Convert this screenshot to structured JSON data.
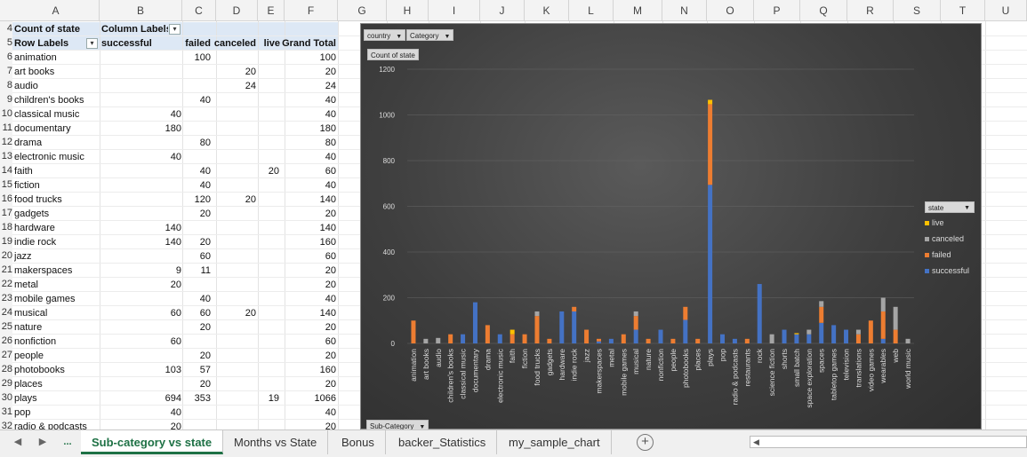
{
  "columns": [
    "A",
    "B",
    "C",
    "D",
    "E",
    "F",
    "G",
    "H",
    "I",
    "J",
    "K",
    "L",
    "M",
    "N",
    "O",
    "P",
    "Q",
    "R",
    "S",
    "T",
    "U"
  ],
  "pivot": {
    "values_label": "Count of state",
    "column_labels": "Column Labels",
    "row_labels": "Row Labels",
    "col_headers": [
      "successful",
      "failed",
      "canceled",
      "live",
      "Grand Total"
    ],
    "first_row_number": 4,
    "rows": [
      {
        "label": "animation",
        "successful": "",
        "failed": "100",
        "canceled": "",
        "live": "",
        "total": "100"
      },
      {
        "label": "art books",
        "successful": "",
        "failed": "",
        "canceled": "20",
        "live": "",
        "total": "20"
      },
      {
        "label": "audio",
        "successful": "",
        "failed": "",
        "canceled": "24",
        "live": "",
        "total": "24"
      },
      {
        "label": "children's books",
        "successful": "",
        "failed": "40",
        "canceled": "",
        "live": "",
        "total": "40"
      },
      {
        "label": "classical music",
        "successful": "40",
        "failed": "",
        "canceled": "",
        "live": "",
        "total": "40"
      },
      {
        "label": "documentary",
        "successful": "180",
        "failed": "",
        "canceled": "",
        "live": "",
        "total": "180"
      },
      {
        "label": "drama",
        "successful": "",
        "failed": "80",
        "canceled": "",
        "live": "",
        "total": "80"
      },
      {
        "label": "electronic music",
        "successful": "40",
        "failed": "",
        "canceled": "",
        "live": "",
        "total": "40"
      },
      {
        "label": "faith",
        "successful": "",
        "failed": "40",
        "canceled": "",
        "live": "20",
        "total": "60"
      },
      {
        "label": "fiction",
        "successful": "",
        "failed": "40",
        "canceled": "",
        "live": "",
        "total": "40"
      },
      {
        "label": "food trucks",
        "successful": "",
        "failed": "120",
        "canceled": "20",
        "live": "",
        "total": "140"
      },
      {
        "label": "gadgets",
        "successful": "",
        "failed": "20",
        "canceled": "",
        "live": "",
        "total": "20"
      },
      {
        "label": "hardware",
        "successful": "140",
        "failed": "",
        "canceled": "",
        "live": "",
        "total": "140"
      },
      {
        "label": "indie rock",
        "successful": "140",
        "failed": "20",
        "canceled": "",
        "live": "",
        "total": "160"
      },
      {
        "label": "jazz",
        "successful": "",
        "failed": "60",
        "canceled": "",
        "live": "",
        "total": "60"
      },
      {
        "label": "makerspaces",
        "successful": "9",
        "failed": "11",
        "canceled": "",
        "live": "",
        "total": "20"
      },
      {
        "label": "metal",
        "successful": "20",
        "failed": "",
        "canceled": "",
        "live": "",
        "total": "20"
      },
      {
        "label": "mobile games",
        "successful": "",
        "failed": "40",
        "canceled": "",
        "live": "",
        "total": "40"
      },
      {
        "label": "musical",
        "successful": "60",
        "failed": "60",
        "canceled": "20",
        "live": "",
        "total": "140"
      },
      {
        "label": "nature",
        "successful": "",
        "failed": "20",
        "canceled": "",
        "live": "",
        "total": "20"
      },
      {
        "label": "nonfiction",
        "successful": "60",
        "failed": "",
        "canceled": "",
        "live": "",
        "total": "60"
      },
      {
        "label": "people",
        "successful": "",
        "failed": "20",
        "canceled": "",
        "live": "",
        "total": "20"
      },
      {
        "label": "photobooks",
        "successful": "103",
        "failed": "57",
        "canceled": "",
        "live": "",
        "total": "160"
      },
      {
        "label": "places",
        "successful": "",
        "failed": "20",
        "canceled": "",
        "live": "",
        "total": "20"
      },
      {
        "label": "plays",
        "successful": "694",
        "failed": "353",
        "canceled": "",
        "live": "19",
        "total": "1066"
      },
      {
        "label": "pop",
        "successful": "40",
        "failed": "",
        "canceled": "",
        "live": "",
        "total": "40"
      },
      {
        "label": "radio & podcasts",
        "successful": "20",
        "failed": "",
        "canceled": "",
        "live": "",
        "total": "20"
      }
    ]
  },
  "chart": {
    "filter_country": "country",
    "filter_category": "Category",
    "value_button": "Count of state",
    "axis_button": "Sub-Category",
    "legend_title": "state",
    "colors": {
      "successful": "#4472c4",
      "failed": "#ed7d31",
      "canceled": "#a5a5a5",
      "live": "#ffc000"
    }
  },
  "chart_data": {
    "type": "bar",
    "stacked": true,
    "ylim": [
      0,
      1200
    ],
    "yticks": [
      "0",
      "200",
      "400",
      "600",
      "800",
      "1000",
      "1200"
    ],
    "categories": [
      "animation",
      "art books",
      "audio",
      "children's books",
      "classical music",
      "documentary",
      "drama",
      "electronic music",
      "faith",
      "fiction",
      "food trucks",
      "gadgets",
      "hardware",
      "indie rock",
      "jazz",
      "makerspaces",
      "metal",
      "mobile games",
      "musical",
      "nature",
      "nonfiction",
      "people",
      "photobooks",
      "places",
      "plays",
      "pop",
      "radio & podcasts",
      "restaurants",
      "rock",
      "science fiction",
      "shorts",
      "small batch",
      "space exploration",
      "spaces",
      "tabletop games",
      "television",
      "translations",
      "video games",
      "wearables",
      "web",
      "world music"
    ],
    "series": [
      {
        "name": "successful",
        "values": [
          0,
          0,
          0,
          0,
          40,
          180,
          0,
          40,
          0,
          0,
          0,
          0,
          140,
          140,
          0,
          9,
          20,
          0,
          60,
          0,
          60,
          0,
          103,
          0,
          694,
          40,
          20,
          0,
          260,
          0,
          60,
          40,
          40,
          90,
          80,
          60,
          0,
          0,
          20,
          0,
          0
        ]
      },
      {
        "name": "failed",
        "values": [
          100,
          0,
          0,
          40,
          0,
          0,
          80,
          0,
          40,
          40,
          120,
          20,
          0,
          20,
          60,
          11,
          0,
          40,
          60,
          20,
          0,
          20,
          57,
          20,
          353,
          0,
          0,
          20,
          0,
          0,
          0,
          0,
          0,
          70,
          0,
          0,
          40,
          100,
          120,
          60,
          0
        ]
      },
      {
        "name": "canceled",
        "values": [
          0,
          20,
          24,
          0,
          0,
          0,
          0,
          0,
          0,
          0,
          20,
          0,
          0,
          0,
          0,
          0,
          0,
          0,
          20,
          0,
          0,
          0,
          0,
          0,
          0,
          0,
          0,
          0,
          0,
          40,
          0,
          0,
          20,
          25,
          0,
          0,
          20,
          0,
          60,
          100,
          20
        ]
      },
      {
        "name": "live",
        "values": [
          0,
          0,
          0,
          0,
          0,
          0,
          0,
          0,
          20,
          0,
          0,
          0,
          0,
          0,
          0,
          0,
          0,
          0,
          0,
          0,
          0,
          0,
          0,
          0,
          19,
          0,
          0,
          0,
          0,
          0,
          0,
          5,
          0,
          0,
          0,
          0,
          0,
          0,
          0,
          0,
          0
        ]
      }
    ],
    "legend": [
      "live",
      "canceled",
      "failed",
      "successful"
    ],
    "legend_position": "right"
  },
  "tabs": {
    "nav_left": "◀",
    "nav_right": "▶",
    "more": "...",
    "add": "+",
    "items": [
      "Sub-category vs state",
      "Months vs State",
      "Bonus",
      "backer_Statistics",
      "my_sample_chart"
    ]
  }
}
